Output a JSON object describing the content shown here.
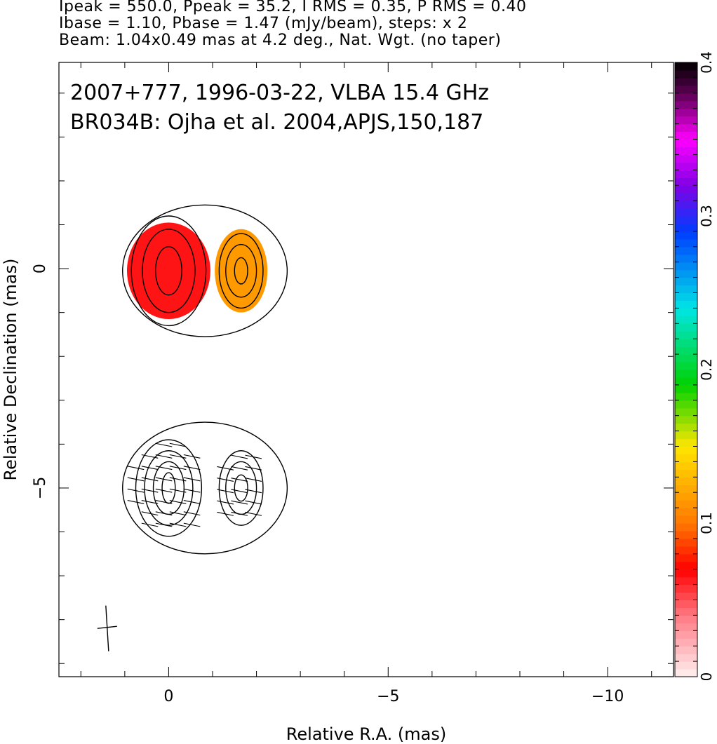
{
  "header": {
    "line1": "Ipeak = 550.0, Ppeak = 35.2, I RMS = 0.35, P RMS = 0.40",
    "line2": "Ibase = 1.10, Pbase = 1.47 (mJy/beam), steps: x 2",
    "line3": "Beam: 1.04x0.49 mas at 4.2 deg., Nat. Wgt. (no taper)"
  },
  "annotations": {
    "line1": "2007+777, 1996-03-22, VLBA 15.4 GHz",
    "line2": "BR034B: Ojha et al. 2004,APJS,150,187"
  },
  "colors": {
    "frame": "#000000",
    "contour": "#000000",
    "background": "#ffffff"
  },
  "chart_data": {
    "type": "heatmap",
    "title": "2007+777, 1996-03-22, VLBA 15.4 GHz",
    "xlabel": "Relative R.A. (mas)",
    "ylabel": "Relative Declination (mas)",
    "xlim": [
      2.5,
      -11.5
    ],
    "ylim": [
      -9.3,
      4.7
    ],
    "x_ticks": [
      {
        "value": 0,
        "label": "0"
      },
      {
        "value": -5,
        "label": "−5"
      },
      {
        "value": -10,
        "label": "−10"
      }
    ],
    "y_ticks": [
      {
        "value": 0,
        "label": "0"
      },
      {
        "value": -5,
        "label": "−5"
      }
    ],
    "colorbar": {
      "min": 0,
      "max": 0.4,
      "ticks": [
        {
          "value": 0,
          "label": "0"
        },
        {
          "value": 0.1,
          "label": "0.1"
        },
        {
          "value": 0.2,
          "label": "0.2"
        },
        {
          "value": 0.3,
          "label": "0.3"
        },
        {
          "value": 0.4,
          "label": "0.4"
        }
      ]
    },
    "panels": [
      {
        "name": "fractional polarization",
        "y_offset": 0,
        "components": [
          {
            "x": 0.0,
            "y": -0.05,
            "contour_radii": [
              [
                0.3,
                0.55
              ],
              [
                0.6,
                0.95
              ],
              [
                0.85,
                1.25
              ]
            ],
            "color_radius": [
              0.95,
              1.1
            ],
            "color_value": 0.065
          },
          {
            "x": -1.65,
            "y": -0.05,
            "contour_radii": [
              [
                0.15,
                0.3
              ],
              [
                0.35,
                0.6
              ],
              [
                0.5,
                0.85
              ]
            ],
            "color_radius": [
              0.6,
              0.95
            ],
            "color_value": 0.115
          }
        ]
      },
      {
        "name": "polarization vectors",
        "y_offset": -5,
        "components": [
          {
            "x": 0.0,
            "y": -5.0,
            "contour_radii": [
              [
                0.15,
                0.35
              ],
              [
                0.35,
                0.6
              ],
              [
                0.55,
                0.85
              ],
              [
                0.75,
                1.1
              ]
            ]
          },
          {
            "x": -1.65,
            "y": -5.0,
            "contour_radii": [
              [
                0.15,
                0.3
              ],
              [
                0.35,
                0.6
              ],
              [
                0.5,
                0.85
              ]
            ]
          }
        ]
      }
    ],
    "beam": {
      "major": 1.04,
      "minor": 0.49,
      "pa_deg": 4.2,
      "x": 1.4,
      "y": -8.2
    },
    "grid": false
  }
}
